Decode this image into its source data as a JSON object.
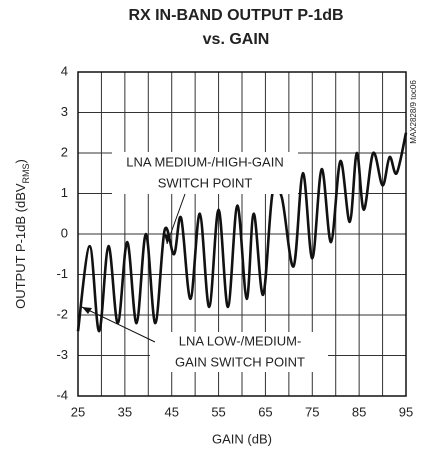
{
  "chart_data": {
    "type": "line",
    "title": [
      "RX IN-BAND OUTPUT P-1dB",
      "vs. GAIN"
    ],
    "x_label": "GAIN (dB)",
    "y_label": "OUTPUT P-1dB (dBV",
    "y_label_sub": "RMS",
    "y_label_end": ")",
    "side_note": "MAX2828/9 toc06",
    "annotations": [
      {
        "lines": [
          "LNA MEDIUM-/HIGH-GAIN",
          "SWITCH POINT"
        ]
      },
      {
        "lines": [
          "LNA LOW-/MEDIUM-",
          "GAIN SWITCH POINT"
        ]
      }
    ],
    "x": [
      25,
      27.5,
      29.5,
      31.5,
      33.5,
      35.5,
      37.5,
      39.5,
      41.5,
      43.5,
      45.5,
      47,
      49,
      51,
      53,
      55,
      57,
      59,
      61,
      62.5,
      64.5,
      66.5,
      68.5,
      71,
      73,
      75,
      77,
      79,
      81,
      83,
      84.5,
      86,
      88,
      90,
      91.5,
      93,
      95
    ],
    "series": [
      {
        "color": "#111111",
        "values": [
          -2.4,
          -0.3,
          -2.4,
          -0.3,
          -2.2,
          -0.2,
          -2.2,
          0,
          -2.2,
          0.1,
          -0.5,
          0.4,
          -1.6,
          0.5,
          -1.8,
          0.6,
          -1.8,
          0.7,
          -1.6,
          0.5,
          -1.5,
          1.0,
          0.9,
          -0.8,
          1.5,
          -0.6,
          1.6,
          -0.2,
          1.8,
          0.3,
          2.0,
          0.6,
          2.0,
          1.2,
          1.9,
          1.5,
          2.5
        ]
      }
    ],
    "xlim": [
      25,
      95
    ],
    "xticks": [
      25,
      35,
      45,
      55,
      65,
      75,
      85,
      95
    ],
    "x_minor_ticks": [
      30,
      40,
      50,
      60,
      70,
      80,
      90
    ],
    "ylim": [
      -4,
      4
    ],
    "yticks": [
      -4,
      -3,
      -2,
      -1,
      0,
      1,
      2,
      3,
      4
    ],
    "grid": true
  }
}
